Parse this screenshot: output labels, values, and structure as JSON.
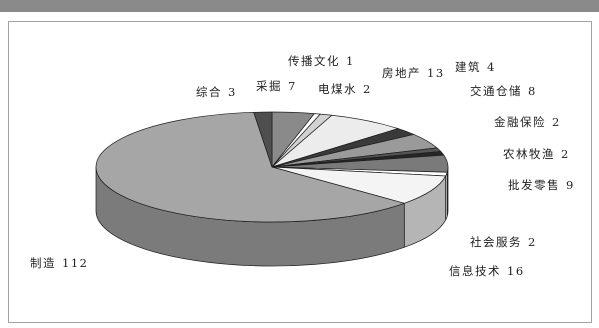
{
  "chart_data": {
    "type": "pie",
    "three_d": true,
    "legend": false,
    "categories": [
      "采掘",
      "传播文化",
      "电煤水",
      "房地产",
      "建筑",
      "交通仓储",
      "金融保险",
      "农林牧渔",
      "批发零售",
      "社会服务",
      "信息技术",
      "制造",
      "综合"
    ],
    "values": [
      7,
      1,
      2,
      13,
      4,
      8,
      2,
      2,
      9,
      2,
      16,
      112,
      3
    ],
    "colors": [
      "#8a8a8a",
      "#ffffff",
      "#d2d2d2",
      "#ececec",
      "#3a3a3a",
      "#9a9a9a",
      "#555555",
      "#262626",
      "#7a7a7a",
      "#ffffff",
      "#f4f4f4",
      "#a6a6a6",
      "#4e4e4e"
    ]
  }
}
